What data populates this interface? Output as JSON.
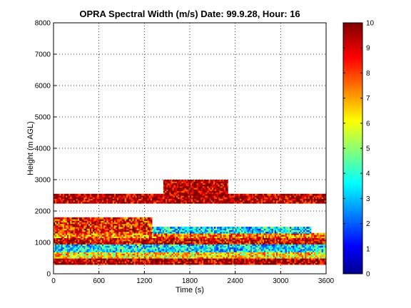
{
  "chart_data": {
    "type": "heatmap",
    "title": "OPRA Spectral Width (m/s)  Date: 99.9.28, Hour: 16",
    "xlabel": "Time (s)",
    "ylabel": "Height (m AGL)",
    "xlim": [
      0,
      3600
    ],
    "ylim": [
      0,
      8000
    ],
    "x_ticks": [
      "0",
      "600",
      "1200",
      "1800",
      "2400",
      "3000",
      "3600"
    ],
    "y_ticks": [
      "0",
      "1000",
      "2000",
      "3000",
      "4000",
      "5000",
      "6000",
      "7000",
      "8000"
    ],
    "grid": true,
    "colorbar": {
      "range": [
        0,
        10
      ],
      "ticks": [
        "0",
        "1",
        "2",
        "3",
        "4",
        "5",
        "6",
        "7",
        "8",
        "9",
        "10"
      ],
      "colormap": "jet"
    },
    "bands": [
      {
        "height_range": [
          300,
          500
        ],
        "time_range": [
          0,
          3600
        ],
        "width_approx": 9.5
      },
      {
        "height_range": [
          500,
          700
        ],
        "time_range": [
          0,
          3600
        ],
        "width_approx": 6.5
      },
      {
        "height_range": [
          700,
          950
        ],
        "time_range": [
          0,
          3600
        ],
        "width_approx": 3.5
      },
      {
        "height_range": [
          950,
          1150
        ],
        "time_range": [
          0,
          3600
        ],
        "width_approx": 9.0
      },
      {
        "height_range": [
          1150,
          1300
        ],
        "time_range": [
          0,
          3600
        ],
        "width_approx": 7.5
      },
      {
        "height_range": [
          1300,
          1500
        ],
        "time_range": [
          1300,
          3400
        ],
        "width_approx": 3.5
      },
      {
        "height_range": [
          1300,
          1800
        ],
        "time_range": [
          0,
          1300
        ],
        "width_approx": 8.5
      },
      {
        "height_range": [
          2250,
          2550
        ],
        "time_range": [
          0,
          3600
        ],
        "width_approx": 9.5
      },
      {
        "height_range": [
          2550,
          3000
        ],
        "time_range": [
          1450,
          2300
        ],
        "width_approx": 9.5
      }
    ]
  }
}
